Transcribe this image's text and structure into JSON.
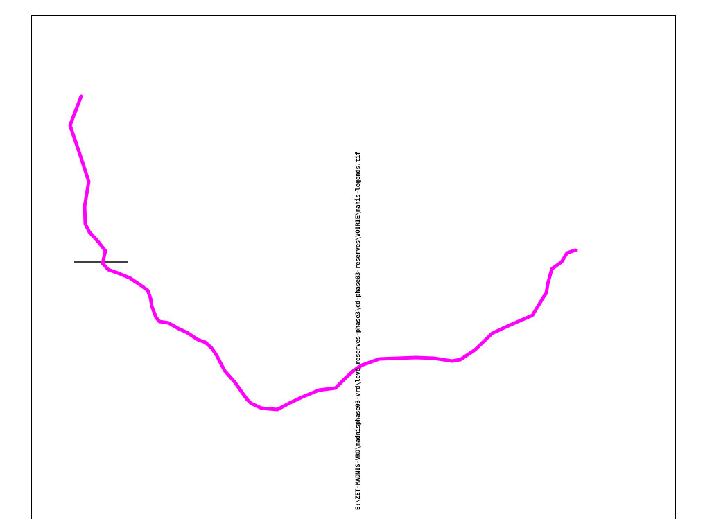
{
  "drawing": {
    "file_path_label": "E:\\ZET-MADNIS-VRD\\madnisphase03-vrd\\levé-reserves-phase3\\cd-phase03-reserves\\VOIRIE\\mahis-legends.tif"
  },
  "colors": {
    "road_line": "#ff00ff",
    "frame": "#000000",
    "background": "#ffffff"
  }
}
